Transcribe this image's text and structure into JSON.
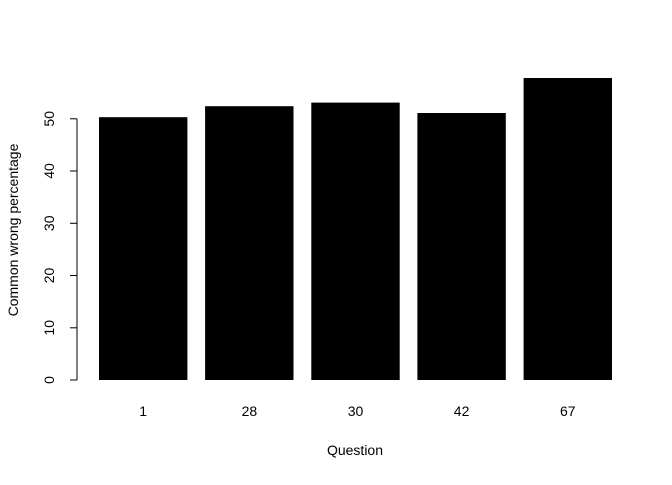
{
  "chart_data": {
    "type": "bar",
    "title": "",
    "xlabel": "Question",
    "ylabel": "Common wrong percentage",
    "categories": [
      "1",
      "28",
      "30",
      "42",
      "67"
    ],
    "values": [
      50.3,
      52.4,
      53.1,
      51.1,
      57.8
    ],
    "ylim": [
      0,
      57.8
    ],
    "yticks": [
      0,
      10,
      20,
      30,
      40,
      50
    ],
    "bar_color": "#000000",
    "grid": false,
    "legend": "none"
  }
}
